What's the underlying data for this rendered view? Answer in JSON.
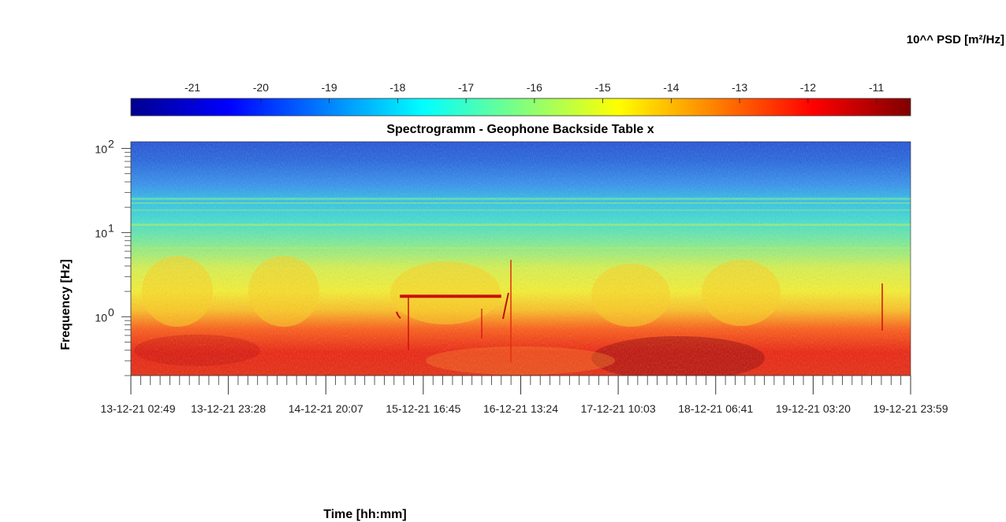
{
  "chart_data": {
    "type": "heatmap",
    "title": "Spectrogramm - Geophone Backside Table x",
    "xlabel": "Time [hh:mm]",
    "ylabel": "Frequency [Hz]",
    "y_scale": "log",
    "ylim": [
      0.2,
      120
    ],
    "y_major_ticks": [
      {
        "value": 1,
        "base": "10",
        "exp": "0"
      },
      {
        "value": 10,
        "base": "10",
        "exp": "1"
      },
      {
        "value": 100,
        "base": "10",
        "exp": "2"
      }
    ],
    "x_tick_labels": [
      "13-12-21  02:49",
      "13-12-21  23:28",
      "14-12-21  20:07",
      "15-12-21  16:45",
      "16-12-21  13:24",
      "17-12-21  10:03",
      "18-12-21  06:41",
      "19-12-21  03:20",
      "19-12-21  23:59"
    ],
    "colorbar": {
      "label": "10^^ PSD [m²/Hz]",
      "location": "top",
      "colormap": "jet",
      "ticks": [
        -21,
        -20,
        -19,
        -18,
        -17,
        -16,
        -15,
        -14,
        -13,
        -12,
        -11
      ],
      "range": [
        -21.9,
        -10.5
      ]
    },
    "features": [
      {
        "kind": "narrowband line",
        "frequency_hz": 1.75,
        "from_fraction": 0.345,
        "to_fraction": 0.475,
        "level": -11.5
      }
    ]
  }
}
